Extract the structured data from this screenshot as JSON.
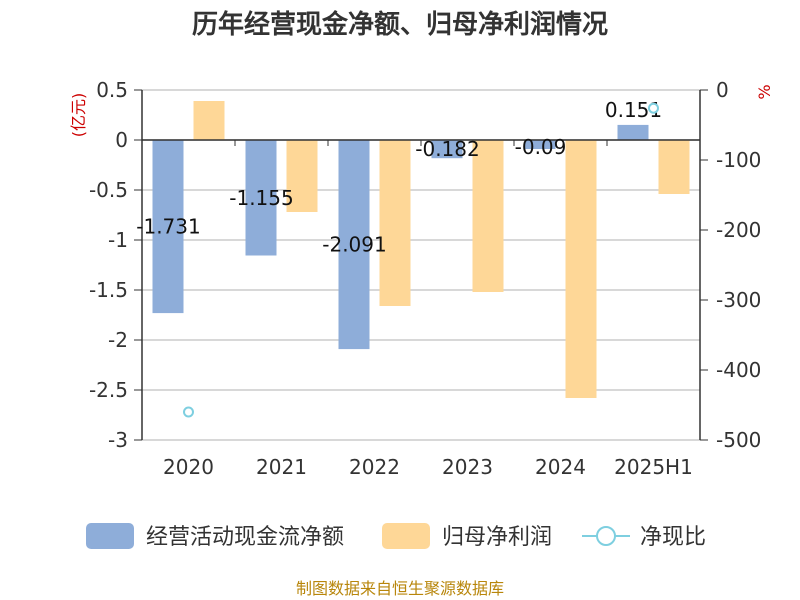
{
  "title": "历年经营现金净额、归母净利润情况",
  "source": "制图数据来自恒生聚源数据库",
  "chart_data": {
    "type": "bar",
    "categories": [
      "2020",
      "2021",
      "2022",
      "2023",
      "2024",
      "2025H1"
    ],
    "left_axis": {
      "unit": "(亿元)",
      "ylim": [
        -3,
        0.5
      ],
      "ticks": [
        "0.5",
        "0",
        "-0.5",
        "-1",
        "-1.5",
        "-2",
        "-2.5",
        "-3"
      ]
    },
    "right_axis": {
      "unit": "%",
      "ylim": [
        -500,
        0
      ],
      "ticks": [
        "0",
        "-100",
        "-200",
        "-300",
        "-400",
        "-500"
      ]
    },
    "series": [
      {
        "name": "经营活动现金流净额",
        "kind": "bar",
        "axis": "left",
        "color": "#8eadd9",
        "values": [
          -1.731,
          -1.155,
          -2.091,
          -0.182,
          -0.09,
          0.151
        ],
        "labels": [
          "-1.731",
          "-1.155",
          "-2.091",
          "-0.182",
          "-0.09",
          "0.151"
        ]
      },
      {
        "name": "归母净利润",
        "kind": "bar",
        "axis": "left",
        "color": "#fed797",
        "values": [
          0.39,
          -0.72,
          -1.66,
          -1.52,
          -2.58,
          -0.54
        ]
      },
      {
        "name": "净现比",
        "kind": "scatter",
        "axis": "right",
        "color": "#7ecfe0",
        "values": [
          -460,
          null,
          null,
          null,
          null,
          -26
        ]
      }
    ],
    "grid": true,
    "legend_position": "bottom"
  }
}
